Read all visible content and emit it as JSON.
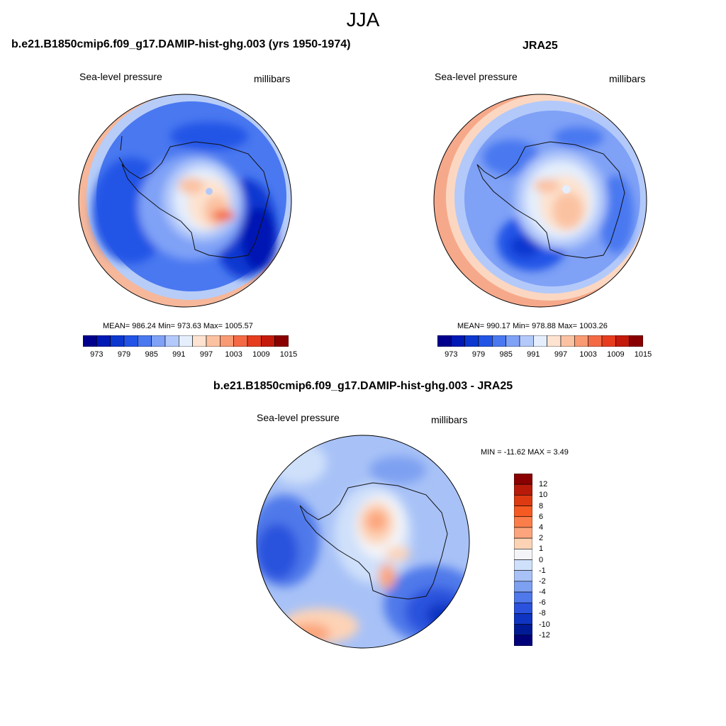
{
  "season_title": "JJA",
  "panels": [
    {
      "title": "b.e21.B1850cmip6.f09_g17.DAMIP-hist-ghg.003 (yrs 1950-1974)",
      "left_label": "Sea-level pressure",
      "right_label": "millibars",
      "stats": "MEAN= 986.24  Min= 973.63  Max= 1005.57",
      "colorbar_ticks": [
        "973",
        "979",
        "985",
        "991",
        "997",
        "1003",
        "1009",
        "1015"
      ]
    },
    {
      "title": "JRA25",
      "left_label": "Sea-level pressure",
      "right_label": "millibars",
      "stats": "MEAN= 990.17  Min= 978.88  Max= 1003.26",
      "colorbar_ticks": [
        "973",
        "979",
        "985",
        "991",
        "997",
        "1003",
        "1009",
        "1015"
      ]
    },
    {
      "title": "b.e21.B1850cmip6.f09_g17.DAMIP-hist-ghg.003 - JRA25",
      "left_label": "Sea-level pressure",
      "right_label": "millibars",
      "stats": "MIN = -11.62 MAX =   3.49",
      "colorbar_ticks": [
        "12",
        "10",
        "8",
        "6",
        "4",
        "2",
        "1",
        "0",
        "-1",
        "-2",
        "-4",
        "-6",
        "-8",
        "-10",
        "-12"
      ]
    }
  ],
  "colors": {
    "abs_scale": [
      "#00008c",
      "#0018b4",
      "#0c38d0",
      "#2255e6",
      "#4a78f0",
      "#7fa1f6",
      "#b3c9fa",
      "#e4eefc",
      "#fde3d0",
      "#fbc2a2",
      "#f89a73",
      "#f46a45",
      "#e63d1f",
      "#c41a0c",
      "#8a0000"
    ],
    "diff_scale": [
      "#8a0000",
      "#b81a0a",
      "#dd3a12",
      "#f55a22",
      "#fb7e4a",
      "#fca57c",
      "#fdd3b6",
      "#f4f4f8",
      "#cfe0fa",
      "#a8c2f7",
      "#7ea0f1",
      "#4f79ea",
      "#2a52dd",
      "#0f34c2",
      "#001a95",
      "#000079"
    ],
    "coastline": "#111111"
  }
}
